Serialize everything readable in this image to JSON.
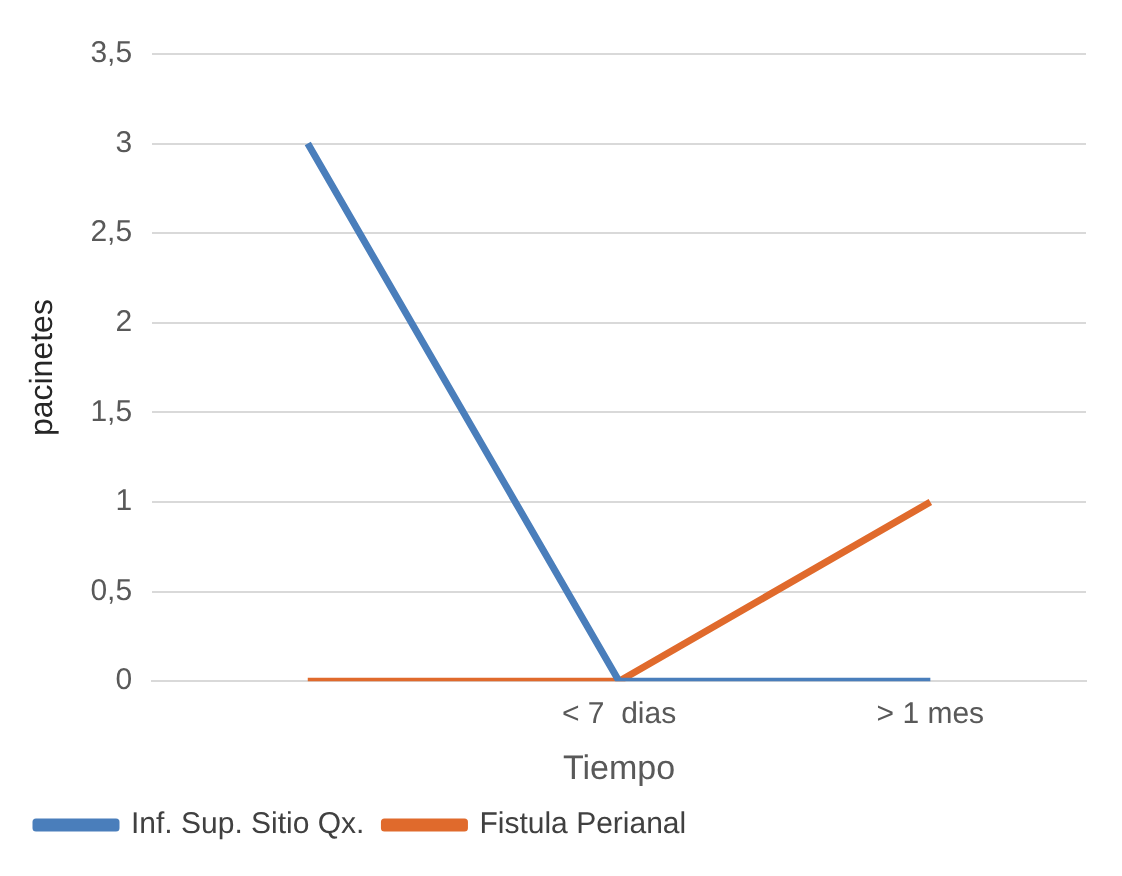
{
  "chart_data": {
    "type": "line",
    "xlabel": "Tiempo",
    "ylabel": "pacinetes",
    "categories": [
      null,
      "< 7  dias",
      "> 1 mes"
    ],
    "series": [
      {
        "name": "Inf. Sup. Sitio Qx.",
        "color": "#4a7ebb",
        "values": [
          3,
          0,
          0
        ]
      },
      {
        "name": "Fistula Perianal",
        "color": "#e06a2c",
        "values": [
          0,
          0,
          1
        ]
      }
    ],
    "ylim": [
      0,
      3.5
    ],
    "yticks": [
      0,
      {
        "value": 0.5,
        "label": "0,5"
      },
      1,
      {
        "value": 1.5,
        "label": "1,5"
      },
      2,
      {
        "value": 2.5,
        "label": "2,5"
      },
      3,
      {
        "value": 3.5,
        "label": "3,5"
      }
    ],
    "grid": "y",
    "legend": "bottom",
    "marker": "none"
  }
}
